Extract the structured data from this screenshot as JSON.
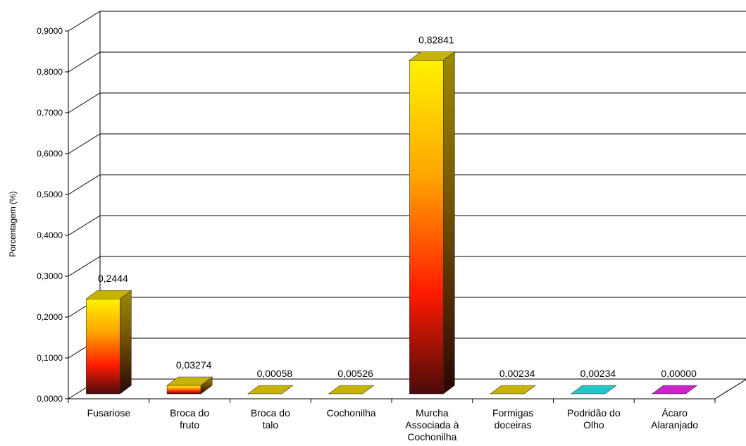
{
  "chart_data": {
    "type": "bar",
    "style": "3d-columns",
    "title": "",
    "xlabel": "",
    "ylabel": "Porcentagem (%)",
    "ylim": [
      0,
      0.9
    ],
    "yticks": [
      "0,0000",
      "0,1000",
      "0,2000",
      "0,3000",
      "0,4000",
      "0,5000",
      "0,6000",
      "0,7000",
      "0,8000",
      "0,9000"
    ],
    "grid": true,
    "legend": "none",
    "categories": [
      [
        "Fusariose"
      ],
      [
        "Broca do",
        "fruto"
      ],
      [
        "Broca do",
        "talo"
      ],
      [
        "Cochonilha"
      ],
      [
        "Murcha",
        "Associada à",
        "Cochonilha"
      ],
      [
        "Formigas",
        "doceiras"
      ],
      [
        "Podridão do",
        "Olho"
      ],
      [
        "Ácaro",
        "Alaranjado"
      ]
    ],
    "values": [
      0.2444,
      0.03274,
      0.00058,
      0.00526,
      0.82841,
      0.00234,
      0.00234,
      0.0
    ],
    "value_labels": [
      "0,2444",
      "0,03274",
      "0,00058",
      "0,00526",
      "0,82841",
      "0,00234",
      "0,00234",
      "0,00000"
    ],
    "colors": {
      "bar_top": "#FFF200",
      "bar_mid_upper": "#FFA500",
      "bar_mid_lower": "#FF1A00",
      "bar_bottom": "#4A0A0A",
      "cap_default": "#C8B400",
      "cap_cyan": "#22C7C7",
      "cap_magenta": "#CC22CC",
      "grid": "#000000"
    },
    "cap_colors": [
      "#C8B400",
      "#C8B400",
      "#C8B400",
      "#C8B400",
      "#C8B400",
      "#C8B400",
      "#22C7C7",
      "#CC22CC"
    ]
  }
}
